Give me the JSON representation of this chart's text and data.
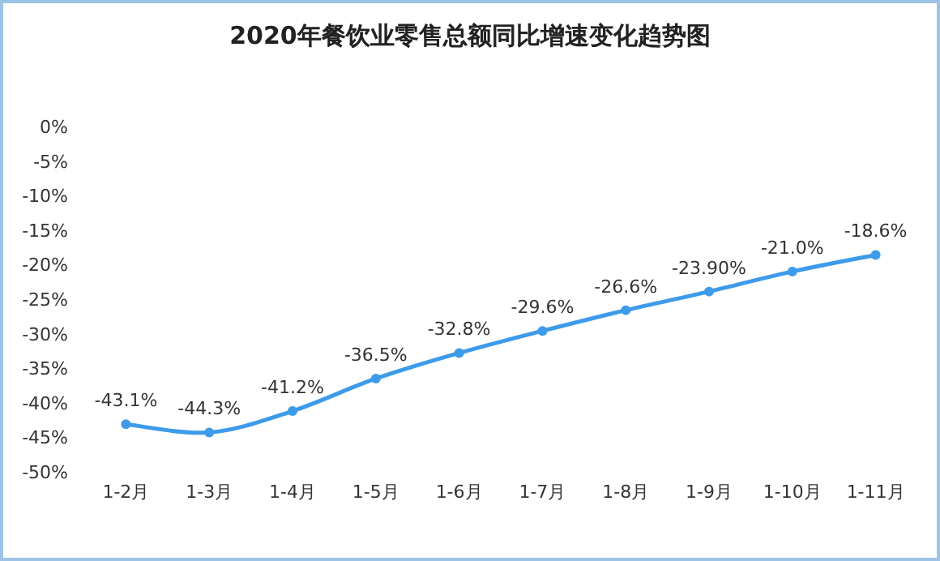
{
  "chart_data": {
    "type": "line",
    "title": "2020年餐饮业零售总额同比增速变化趋势图",
    "categories": [
      "1-2月",
      "1-3月",
      "1-4月",
      "1-5月",
      "1-6月",
      "1-7月",
      "1-8月",
      "1-9月",
      "1-10月",
      "1-11月"
    ],
    "series": [
      {
        "color": "#3d9be9",
        "values": [
          -43.1,
          -44.3,
          -41.2,
          -36.5,
          -32.8,
          -29.6,
          -26.6,
          -23.9,
          -21.0,
          -18.6
        ],
        "value_labels": [
          "-43.1%",
          "-44.3%",
          "-41.2%",
          "-36.5%",
          "-32.8%",
          "-29.6%",
          "-26.6%",
          "-23.90%",
          "-21.0%",
          "-18.6%"
        ]
      }
    ],
    "ylim": [
      -50,
      0
    ],
    "yticks": [
      {
        "value": 0,
        "label": "0%"
      },
      {
        "value": -5,
        "label": "-5%"
      },
      {
        "value": -10,
        "label": "-10%"
      },
      {
        "value": -15,
        "label": "-15%"
      },
      {
        "value": -20,
        "label": "-20%"
      },
      {
        "value": -25,
        "label": "-25%"
      },
      {
        "value": -30,
        "label": "-30%"
      },
      {
        "value": -35,
        "label": "-35%"
      },
      {
        "value": -40,
        "label": "-40%"
      },
      {
        "value": -45,
        "label": "-45%"
      },
      {
        "value": -50,
        "label": "-50%"
      }
    ],
    "marker": "circle",
    "grid": false
  }
}
